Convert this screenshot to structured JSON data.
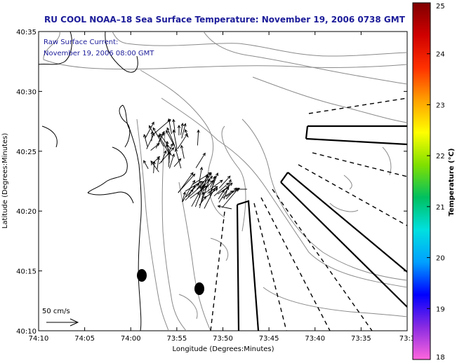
{
  "title": "RU COOL  NOAA–18  Sea Surface Temperature:  November 19, 2006 0738 GMT",
  "inset": {
    "line1": "Raw Surface Current:",
    "line2": "November 19, 2006 08:00 GMT"
  },
  "scale_label": "50 cm/s",
  "axes": {
    "xlabel": "Longitude (Degrees:Minutes)",
    "ylabel": "Latitude (Degrees:Minutes)",
    "x_ticks": [
      "74:10",
      "74:05",
      "74:00",
      "73:55",
      "73:50",
      "73:45",
      "73:40",
      "73:35",
      "73:3"
    ],
    "y_ticks": [
      "40:35",
      "40:30",
      "40:25",
      "40:20",
      "40:15",
      "40:10"
    ]
  },
  "colorbar": {
    "label": "Temperature (°C)",
    "ticks": [
      "25",
      "24",
      "23",
      "22",
      "21",
      "20",
      "19",
      "18"
    ],
    "range": [
      18,
      25
    ],
    "colors": [
      "#ff66dd",
      "#8a2be2",
      "#0000ff",
      "#00a0ff",
      "#00e0e0",
      "#00c060",
      "#80e000",
      "#ffff00",
      "#ffa000",
      "#ff3000",
      "#d00000",
      "#800000"
    ]
  },
  "colors": {
    "title": "#1c1c9a",
    "contour": "#8a8a8a",
    "coast": "#000000"
  }
}
